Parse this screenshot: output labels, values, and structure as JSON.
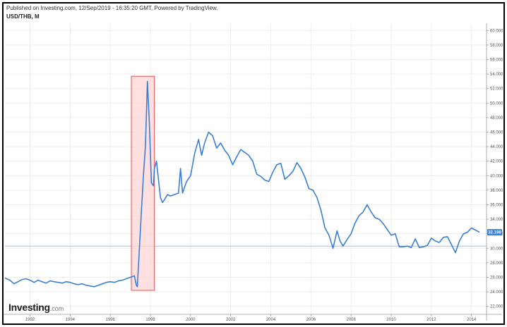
{
  "header": {
    "published": "Published on Investing.com, 12/Sep/2019 - 16:35:20 GMT, Powered by TradingView.",
    "symbol": "USD/THB, M"
  },
  "logo": {
    "main": "Investing",
    "tld": ".com"
  },
  "colors": {
    "line": "#3a7fd5",
    "highlight_fill": "#ffd6d6",
    "highlight_stroke": "#e05252",
    "last_price_bg": "#3a7fd5",
    "grid": "#eeeeee",
    "ref_line": "#8fb6e6"
  },
  "chart_data": {
    "type": "line",
    "series": [
      {
        "x": [
          1990.75,
          1991.0,
          1991.2,
          1991.4,
          1991.6,
          1991.8,
          1992.0,
          1992.2,
          1992.4,
          1992.6,
          1992.8,
          1993.0,
          1993.2,
          1993.4,
          1993.6,
          1993.8,
          1994.0,
          1994.2,
          1994.4,
          1994.6,
          1994.8,
          1995.0,
          1995.2,
          1995.4,
          1995.6,
          1995.8,
          1996.0,
          1996.2,
          1996.4,
          1996.6,
          1996.8,
          1997.0,
          1997.2,
          1997.3,
          1997.35,
          1997.45,
          1997.55,
          1997.65,
          1997.75,
          1997.85,
          1997.95,
          1998.05,
          1998.15,
          1998.2,
          1998.3,
          1998.4,
          1998.5,
          1998.6,
          1998.7,
          1998.85,
          1999.0,
          1999.2,
          1999.4,
          1999.5,
          1999.6,
          1999.8,
          2000.0,
          2000.2,
          2000.4,
          2000.55,
          2000.7,
          2000.9,
          2001.1,
          2001.3,
          2001.5,
          2001.7,
          2001.9,
          2002.1,
          2002.3,
          2002.5,
          2002.7,
          2002.9,
          2003.1,
          2003.3,
          2003.5,
          2003.7,
          2003.9,
          2004.1,
          2004.3,
          2004.5,
          2004.7,
          2004.9,
          2005.1,
          2005.3,
          2005.5,
          2005.7,
          2005.9,
          2006.1,
          2006.3,
          2006.5,
          2006.7,
          2006.9,
          2007.1,
          2007.3,
          2007.45,
          2007.6,
          2007.8,
          2008.0,
          2008.2,
          2008.4,
          2008.6,
          2008.8,
          2009.0,
          2009.2,
          2009.4,
          2009.6,
          2009.8,
          2010.0,
          2010.2,
          2010.4,
          2010.6,
          2010.8,
          2011.0,
          2011.2,
          2011.4,
          2011.6,
          2011.8,
          2012.0,
          2012.2,
          2012.4,
          2012.6,
          2012.8,
          2013.0,
          2013.2,
          2013.4,
          2013.6,
          2013.8,
          2014.0,
          2014.2,
          2014.4
        ],
        "values": [
          25.9,
          25.6,
          25.1,
          25.4,
          25.7,
          25.8,
          25.6,
          25.3,
          25.6,
          25.4,
          25.2,
          25.5,
          25.4,
          25.3,
          25.2,
          25.4,
          25.3,
          25.1,
          25.0,
          25.1,
          24.9,
          24.8,
          24.7,
          24.9,
          25.1,
          25.3,
          25.4,
          25.3,
          25.5,
          25.6,
          25.8,
          26.0,
          26.2,
          24.9,
          24.7,
          30.0,
          35.0,
          40.0,
          44.0,
          53.0,
          47.0,
          39.0,
          38.6,
          41.0,
          42.0,
          39.5,
          37.0,
          36.3,
          36.7,
          37.4,
          37.2,
          37.4,
          37.6,
          41.0,
          37.6,
          39.2,
          40.0,
          43.0,
          45.0,
          42.8,
          44.5,
          46.0,
          45.5,
          43.8,
          44.5,
          43.5,
          42.8,
          41.5,
          42.6,
          43.6,
          43.2,
          42.8,
          42.0,
          40.2,
          39.9,
          39.4,
          39.2,
          40.5,
          41.5,
          41.7,
          39.5,
          40.0,
          40.6,
          41.8,
          41.0,
          39.8,
          38.2,
          38.0,
          37.0,
          35.2,
          32.8,
          31.8,
          30.0,
          32.4,
          31.0,
          30.3,
          31.2,
          32.0,
          33.5,
          34.5,
          35.0,
          36.0,
          35.0,
          34.2,
          34.0,
          33.4,
          32.6,
          31.8,
          32.0,
          30.2,
          30.2,
          30.3,
          30.1,
          31.3,
          30.1,
          30.2,
          30.4,
          31.4,
          31.0,
          30.8,
          31.5,
          31.6,
          30.5,
          29.4,
          31.0,
          32.0,
          32.2,
          32.8,
          32.5,
          32.2
        ],
        "last_label": "32.198"
      }
    ],
    "x_ticks": [
      {
        "label": "1992",
        "value": 1992
      },
      {
        "label": "1994",
        "value": 1994
      },
      {
        "label": "1996",
        "value": 1996
      },
      {
        "label": "1998",
        "value": 1998
      },
      {
        "label": "2000",
        "value": 2000
      },
      {
        "label": "2002",
        "value": 2002
      },
      {
        "label": "2004",
        "value": 2004
      },
      {
        "label": "2006",
        "value": 2006
      },
      {
        "label": "2008",
        "value": 2008
      },
      {
        "label": "2010",
        "value": 2010
      },
      {
        "label": "2012",
        "value": 2012
      },
      {
        "label": "2014",
        "value": 2014
      }
    ],
    "y_ticks": [
      {
        "label": "22.000",
        "value": 22
      },
      {
        "label": "24.000",
        "value": 24
      },
      {
        "label": "26.000",
        "value": 26
      },
      {
        "label": "28.000",
        "value": 28
      },
      {
        "label": "30.000",
        "value": 30
      },
      {
        "label": "32.000",
        "value": 32
      },
      {
        "label": "34.000",
        "value": 34
      },
      {
        "label": "36.000",
        "value": 36
      },
      {
        "label": "38.000",
        "value": 38
      },
      {
        "label": "40.000",
        "value": 40
      },
      {
        "label": "42.000",
        "value": 42
      },
      {
        "label": "44.000",
        "value": 44
      },
      {
        "label": "46.000",
        "value": 46
      },
      {
        "label": "48.000",
        "value": 48
      },
      {
        "label": "50.000",
        "value": 50
      },
      {
        "label": "52.000",
        "value": 52
      },
      {
        "label": "54.000",
        "value": 54
      },
      {
        "label": "56.000",
        "value": 56
      },
      {
        "label": "58.000",
        "value": 58
      },
      {
        "label": "60.000",
        "value": 60
      }
    ],
    "xlim": [
      1990.75,
      2014.75
    ],
    "ylim": [
      20.9,
      61.0
    ],
    "reference_line": 30.3,
    "highlight": {
      "x0": 1997.05,
      "x1": 1998.2,
      "y0": 24.2,
      "y1": 53.7
    },
    "grid": true
  }
}
